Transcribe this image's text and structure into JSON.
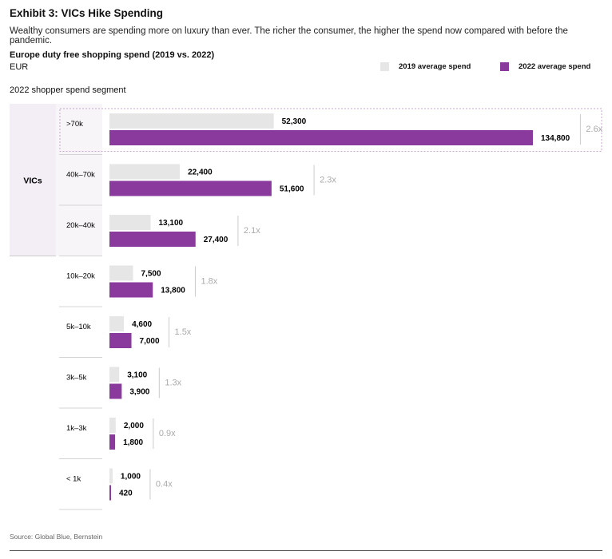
{
  "header": {
    "title": "Exhibit 3: VICs Hike Spending",
    "subtitle": "Wealthy consumers are spending more on luxury than ever. The richer the consumer, the higher the spend now compared with before the pandemic."
  },
  "chart_data": {
    "type": "bar",
    "orientation": "horizontal",
    "title": "Europe duty free shopping spend (2019 vs. 2022)",
    "unit": "EUR",
    "category_axis_label": "2022 shopper spend segment",
    "group": {
      "label": "VICs",
      "categories": [
        ">70k",
        "40k–70k",
        "20k–40k"
      ]
    },
    "categories": [
      ">70k",
      "40k–70k",
      "20k–40k",
      "10k–20k",
      "5k–10k",
      "3k–5k",
      "1k–3k",
      "< 1k"
    ],
    "series": [
      {
        "name": "2019 average spend",
        "color": "#e6e6e6",
        "values": [
          52300,
          22400,
          13100,
          7500,
          4600,
          3100,
          2000,
          1000
        ],
        "labels": [
          "52,300",
          "22,400",
          "13,100",
          "7,500",
          "4,600",
          "3,100",
          "2,000",
          "1,000"
        ]
      },
      {
        "name": "2022 average spend",
        "color": "#8a3a9c",
        "values": [
          134800,
          51600,
          27400,
          13800,
          7000,
          3900,
          1800,
          420
        ],
        "labels": [
          "134,800",
          "51,600",
          "27,400",
          "13,800",
          "7,000",
          "3,900",
          "1,800",
          "420"
        ]
      }
    ],
    "ratios": [
      "2.6x",
      "2.3x",
      "2.1x",
      "1.8x",
      "1.5x",
      "1.3x",
      "0.9x",
      "0.4x"
    ],
    "highlight_category": ">70k",
    "xlim": [
      0,
      134800
    ]
  },
  "source": "Source: Global Blue, Bernstein"
}
